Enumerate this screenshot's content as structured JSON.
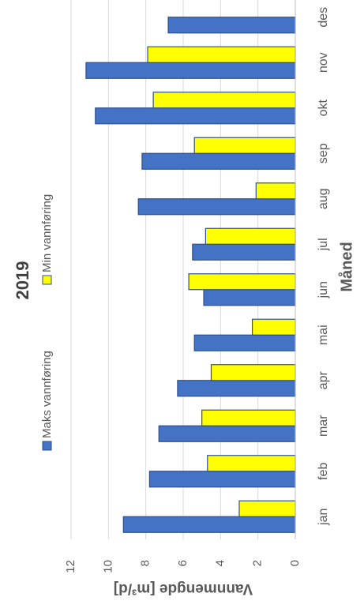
{
  "chart_data": {
    "type": "bar",
    "title": "2019",
    "x_label": "Måned",
    "y_label": "Vannmengde [m³/d]",
    "categories": [
      "jan",
      "feb",
      "mar",
      "apr",
      "mai",
      "jun",
      "jul",
      "aug",
      "sep",
      "okt",
      "nov",
      "des"
    ],
    "series": [
      {
        "name": "Maks vannføring",
        "color": "#4472c4",
        "values": [
          9.2,
          7.8,
          7.3,
          6.3,
          5.4,
          4.9,
          5.5,
          8.4,
          8.2,
          10.7,
          11.2,
          6.8
        ]
      },
      {
        "name": "Min vannføring",
        "color": "#ffff00",
        "values": [
          3.0,
          4.7,
          5.0,
          4.5,
          2.3,
          5.7,
          4.8,
          2.1,
          5.4,
          7.6,
          7.9,
          0
        ]
      }
    ],
    "ylim": [
      0,
      12
    ],
    "yticks": [
      0,
      2,
      4,
      6,
      8,
      10,
      12
    ],
    "grid": true,
    "legend": "top"
  }
}
